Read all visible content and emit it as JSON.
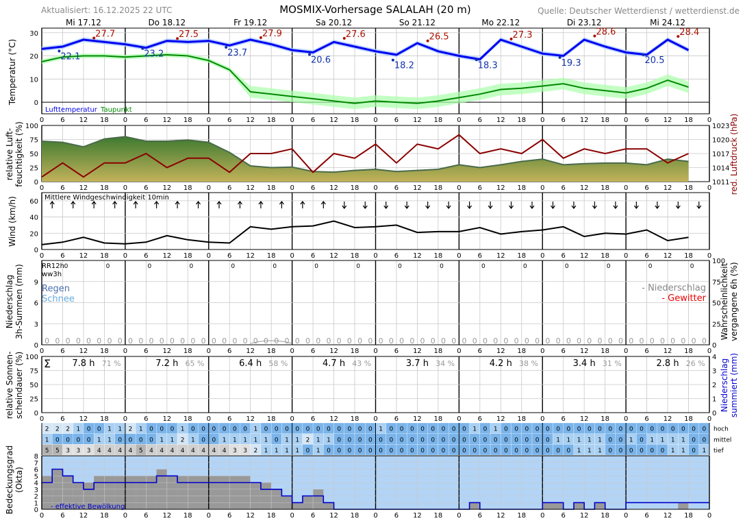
{
  "header": {
    "updated": "Aktualisiert: 16.12.2025 22 UTC",
    "title": "MOSMIX-Vorhersage SALALAH (20 m)",
    "source": "Quelle: Deutscher Wetterdienst / wetterdienst.de"
  },
  "days": [
    "Mi 17.12",
    "Do 18.12",
    "Fr 19.12",
    "Sa 20.12",
    "So 21.12",
    "Mo 22.12",
    "Di 23.12",
    "Mi 24.12"
  ],
  "hour_ticks": [
    "0",
    "6",
    "12",
    "18"
  ],
  "colors": {
    "temp": "#0000ee",
    "dew": "#008800",
    "rh": "#5a8a3a",
    "pressure": "#8b0000",
    "wind": "#000000",
    "maxlabel": "#aa1100",
    "minlabel": "#1133aa",
    "cloud": "#0000cc",
    "cloudfill": "#999999",
    "skyfill": "#b3d4f5"
  },
  "chart_data": [
    {
      "type": "line",
      "id": "temperature",
      "ylabel": "Temperatur (°C)",
      "ylim": [
        -5,
        32
      ],
      "yticks": [
        0,
        10,
        20,
        30
      ],
      "legend": [
        "Lufttemperatur",
        "Taupunkt"
      ],
      "x_hours": [
        0,
        6,
        12,
        18,
        24,
        30,
        36,
        42,
        48,
        54,
        60,
        66,
        72,
        78,
        84,
        90,
        96,
        102,
        108,
        114,
        120,
        126,
        132,
        138,
        144,
        150,
        156,
        162,
        168,
        174,
        180,
        186
      ],
      "series": [
        {
          "name": "Lufttemperatur",
          "values": [
            23,
            24,
            27,
            26,
            25,
            23.5,
            26.5,
            26,
            26.5,
            24.5,
            27,
            25,
            22.5,
            21.5,
            26,
            24,
            22,
            20.5,
            25.5,
            22,
            20,
            18.5,
            27,
            24,
            21,
            20,
            27,
            24,
            21.5,
            20.5,
            27,
            22.5
          ]
        },
        {
          "name": "Taupunkt",
          "values": [
            17.5,
            19.5,
            20,
            20,
            19.5,
            20,
            20.5,
            20,
            18,
            14,
            4.5,
            3.5,
            2.5,
            1.5,
            0.5,
            -0.5,
            0.5,
            0,
            -0.5,
            0.5,
            2,
            3.5,
            5.5,
            6,
            7,
            8,
            6,
            5,
            4,
            6,
            9.5,
            6.5
          ]
        }
      ],
      "annotations": [
        {
          "day": "Mi 17.12",
          "max": "27.7",
          "min": "22.1"
        },
        {
          "day": "Do 18.12",
          "max": "27.5",
          "min": "23.2"
        },
        {
          "day": "Fr 19.12",
          "max": "27.9",
          "min": "23.7"
        },
        {
          "day": "Sa 20.12",
          "max": "27.6",
          "min": "20.6"
        },
        {
          "day": "So 21.12",
          "max": "26.5",
          "min": "18.2"
        },
        {
          "day": "Mo 22.12",
          "max": "27.3",
          "min": "18.3"
        },
        {
          "day": "Di 23.12",
          "max": "28.6",
          "min": "19.3"
        },
        {
          "day": "Mi 24.12",
          "max": "28.4",
          "min": "20.5"
        }
      ]
    },
    {
      "type": "area",
      "id": "humidity-pressure",
      "ylabel": "relative Luft-feuchtigkeit (%)",
      "ylabel2": "red. Luftdruck (hPa)",
      "ylim": [
        0,
        100
      ],
      "yticks": [
        0,
        25,
        50,
        75,
        100
      ],
      "y2lim": [
        1011,
        1023
      ],
      "y2ticks": [
        1011,
        1014,
        1017,
        1020,
        1023
      ],
      "x_hours": [
        0,
        6,
        12,
        18,
        24,
        30,
        36,
        42,
        48,
        54,
        60,
        66,
        72,
        78,
        84,
        90,
        96,
        102,
        108,
        114,
        120,
        126,
        132,
        138,
        144,
        150,
        156,
        162,
        168,
        174,
        180,
        186
      ],
      "series": [
        {
          "name": "relative Luftfeuchtigkeit",
          "values": [
            72,
            70,
            62,
            76,
            80,
            72,
            72,
            74,
            70,
            52,
            28,
            25,
            26,
            18,
            17,
            20,
            22,
            18,
            20,
            22,
            30,
            25,
            30,
            36,
            40,
            30,
            32,
            33,
            33,
            30,
            40,
            36
          ]
        },
        {
          "name": "red. Luftdruck",
          "values": [
            1012,
            1015,
            1012,
            1015,
            1015,
            1017,
            1014,
            1016,
            1016,
            1013,
            1017,
            1017,
            1018,
            1013,
            1017,
            1016,
            1019,
            1015,
            1019,
            1018,
            1021,
            1017,
            1018,
            1017,
            1020,
            1016,
            1018,
            1017,
            1018,
            1018,
            1015,
            1017
          ]
        }
      ]
    },
    {
      "type": "line",
      "id": "wind",
      "ylabel": "Wind (km/h)",
      "ylim": [
        0,
        70
      ],
      "yticks": [
        0,
        20,
        40,
        60
      ],
      "legend": [
        "Mittlere Windgeschwindigkeit 10min"
      ],
      "x_hours": [
        0,
        6,
        12,
        18,
        24,
        30,
        36,
        42,
        48,
        54,
        60,
        66,
        72,
        78,
        84,
        90,
        96,
        102,
        108,
        114,
        120,
        126,
        132,
        138,
        144,
        150,
        156,
        162,
        168,
        174,
        180,
        186
      ],
      "series": [
        {
          "name": "Mittlere Windgeschwindigkeit 10min",
          "values": [
            6,
            9,
            15,
            8,
            7,
            9,
            17,
            12,
            9,
            8,
            28,
            25,
            28,
            29,
            35,
            27,
            28,
            30,
            21,
            22,
            22,
            27,
            19,
            22,
            24,
            28,
            16,
            20,
            19,
            24,
            11,
            15
          ]
        }
      ]
    },
    {
      "type": "bar",
      "id": "precipitation",
      "ylabel": "Niederschlag 3h-Summen (mm)",
      "ylabel2": "Wahrscheinlichkeit vergangene 6h (%)",
      "ylim": [
        0,
        12
      ],
      "yticks": [
        0,
        3,
        6,
        9
      ],
      "y2ticks": [
        0,
        25,
        50,
        75,
        100
      ],
      "legend_left": [
        "Regen",
        "Schnee"
      ],
      "legend_right": [
        "- Niederschlag",
        "- Gewitter"
      ],
      "header_labels": [
        "RR12h",
        "ww3h"
      ],
      "rr12h": [
        "0",
        "0",
        "0",
        "0",
        "0",
        "0",
        "0",
        "0",
        "0",
        "0",
        "0",
        "0",
        "0",
        "0",
        "0",
        "0"
      ],
      "values_3h": [
        "0",
        "0",
        "0",
        "0",
        "0",
        "0",
        "0",
        "0",
        "0",
        "0",
        "0",
        "0",
        "0",
        "0",
        "0",
        "0",
        "0",
        "0",
        "0",
        "0",
        "0",
        "0",
        "0",
        "0",
        "0",
        "0",
        "0",
        "0",
        "0",
        "0",
        "0",
        "0",
        "0",
        "0",
        "0",
        "0",
        "0",
        "0",
        "0",
        "0",
        "0",
        "0",
        "0",
        "0",
        "0",
        "0",
        "0",
        "0",
        "0",
        "0",
        "0",
        "0",
        "0",
        "0",
        "0",
        "0",
        "0",
        "0",
        "0",
        "0",
        "0",
        "0",
        "0",
        "0"
      ]
    },
    {
      "type": "bar",
      "id": "sunshine",
      "ylabel": "relative Sonnen-scheindauer (%)",
      "ylabel2": "Niederschlag summiert (mm)",
      "ylim": [
        0,
        100
      ],
      "yticks": [
        0,
        25,
        50,
        75,
        100
      ],
      "y2ticks": [
        0,
        1,
        2,
        3,
        4
      ],
      "sigma": "Σ",
      "daily": [
        {
          "hours": "7.8 h",
          "pct": "71 %"
        },
        {
          "hours": "7.2 h",
          "pct": "65 %"
        },
        {
          "hours": "6.4 h",
          "pct": "58 %"
        },
        {
          "hours": "4.7 h",
          "pct": "43 %"
        },
        {
          "hours": "3.7 h",
          "pct": "34 %"
        },
        {
          "hours": "4.2 h",
          "pct": "38 %"
        },
        {
          "hours": "3.4 h",
          "pct": "31 %"
        },
        {
          "hours": "2.8 h",
          "pct": "26 %"
        }
      ]
    },
    {
      "type": "table",
      "id": "cloud-layers",
      "row_labels": [
        "hoch",
        "mittel",
        "tief"
      ],
      "rows": [
        [
          "2",
          "2",
          "2",
          "1",
          "0",
          "0",
          "1",
          "1",
          "2",
          "1",
          "0",
          "0",
          "0",
          "1",
          "0",
          "0",
          "0",
          "0",
          "0",
          "0",
          "1",
          "0",
          "0",
          "0",
          "0",
          "0",
          "0",
          "0",
          "0",
          "0",
          "0",
          "0",
          "1",
          "0",
          "0",
          "0",
          "0",
          "0",
          "0",
          "0",
          "0",
          "1",
          "0",
          "1",
          "0",
          "0",
          "0",
          "0",
          "0",
          "0",
          "0",
          "0",
          "0",
          "0",
          "0",
          "0",
          "0",
          "0",
          "0",
          "0",
          "0",
          "0",
          "0",
          "0"
        ],
        [
          "1",
          "0",
          "0",
          "0",
          "0",
          "1",
          "1",
          "0",
          "0",
          "0",
          "0",
          "1",
          "1",
          "2",
          "1",
          "0",
          "0",
          "1",
          "1",
          "1",
          "1",
          "1",
          "0",
          "1",
          "1",
          "2",
          "1",
          "1",
          "0",
          "0",
          "0",
          "0",
          "0",
          "0",
          "0",
          "0",
          "0",
          "0",
          "0",
          "0",
          "0",
          "0",
          "0",
          "0",
          "0",
          "0",
          "0",
          "0",
          "0",
          "1",
          "1",
          "1",
          "1",
          "1",
          "0",
          "0",
          "1",
          "0",
          "1",
          "1",
          "1",
          "1",
          "0",
          "0"
        ],
        [
          "5",
          "5",
          "3",
          "3",
          "3",
          "4",
          "4",
          "4",
          "4",
          "5",
          "4",
          "4",
          "4",
          "4",
          "4",
          "4",
          "4",
          "4",
          "3",
          "3",
          "2",
          "1",
          "1",
          "1",
          "1",
          "0",
          "1",
          "0",
          "0",
          "0",
          "0",
          "0",
          "0",
          "0",
          "0",
          "0",
          "0",
          "0",
          "0",
          "0",
          "0",
          "0",
          "0",
          "0",
          "0",
          "0",
          "0",
          "0",
          "0",
          "0",
          "0",
          "1",
          "1",
          "1",
          "0",
          "0",
          "0",
          "0",
          "0",
          "0",
          "1",
          "1",
          "0",
          "1"
        ]
      ]
    },
    {
      "type": "area",
      "id": "cloud-cover",
      "ylabel": "Bedeckungsgrad (Okta)",
      "ylim": [
        0,
        8
      ],
      "yticks": [
        0,
        1,
        2,
        3,
        4,
        5,
        6,
        7,
        8
      ],
      "legend": [
        "- effektive Bewölkung"
      ],
      "x_hours": [
        0,
        3,
        6,
        9,
        12,
        15,
        18,
        21,
        24,
        27,
        30,
        33,
        36,
        39,
        42,
        45,
        48,
        51,
        54,
        57,
        60,
        63,
        66,
        69,
        72,
        75,
        78,
        81,
        84,
        87,
        90,
        93,
        96,
        99,
        102,
        105,
        108,
        111,
        114,
        117,
        120,
        123,
        126,
        129,
        132,
        135,
        138,
        141,
        144,
        147,
        150,
        153,
        156,
        159,
        162,
        165,
        168,
        171,
        174,
        177,
        180,
        183,
        186,
        189
      ],
      "series": [
        {
          "name": "Gesamtbedeckung",
          "values": [
            5,
            6,
            5,
            4,
            4,
            5,
            5,
            5,
            5,
            5,
            5,
            6,
            5,
            5,
            5,
            5,
            5,
            5,
            5,
            5,
            4,
            4,
            3,
            2,
            1,
            2,
            3,
            1,
            0,
            0,
            0,
            0,
            0,
            0,
            0,
            0,
            0,
            0,
            0,
            0,
            0,
            1,
            0,
            0,
            0,
            0,
            0,
            0,
            1,
            1,
            0,
            1,
            0,
            1,
            0,
            0,
            0,
            0,
            0,
            0,
            0,
            1,
            0,
            0
          ]
        },
        {
          "name": "effektive Bewölkung",
          "values": [
            4,
            6,
            5,
            4,
            3,
            4,
            4,
            4,
            4,
            4,
            4,
            5,
            5,
            4,
            4,
            4,
            4,
            4,
            4,
            4,
            4,
            3,
            3,
            2,
            1,
            2,
            2,
            1,
            0,
            0,
            0,
            0,
            0,
            0,
            0,
            0,
            0,
            0,
            0,
            0,
            0,
            1,
            0,
            0,
            0,
            0,
            0,
            0,
            1,
            1,
            0,
            1,
            0,
            1,
            0,
            0,
            1,
            1,
            1,
            1,
            1,
            1,
            1,
            1
          ]
        }
      ]
    }
  ]
}
